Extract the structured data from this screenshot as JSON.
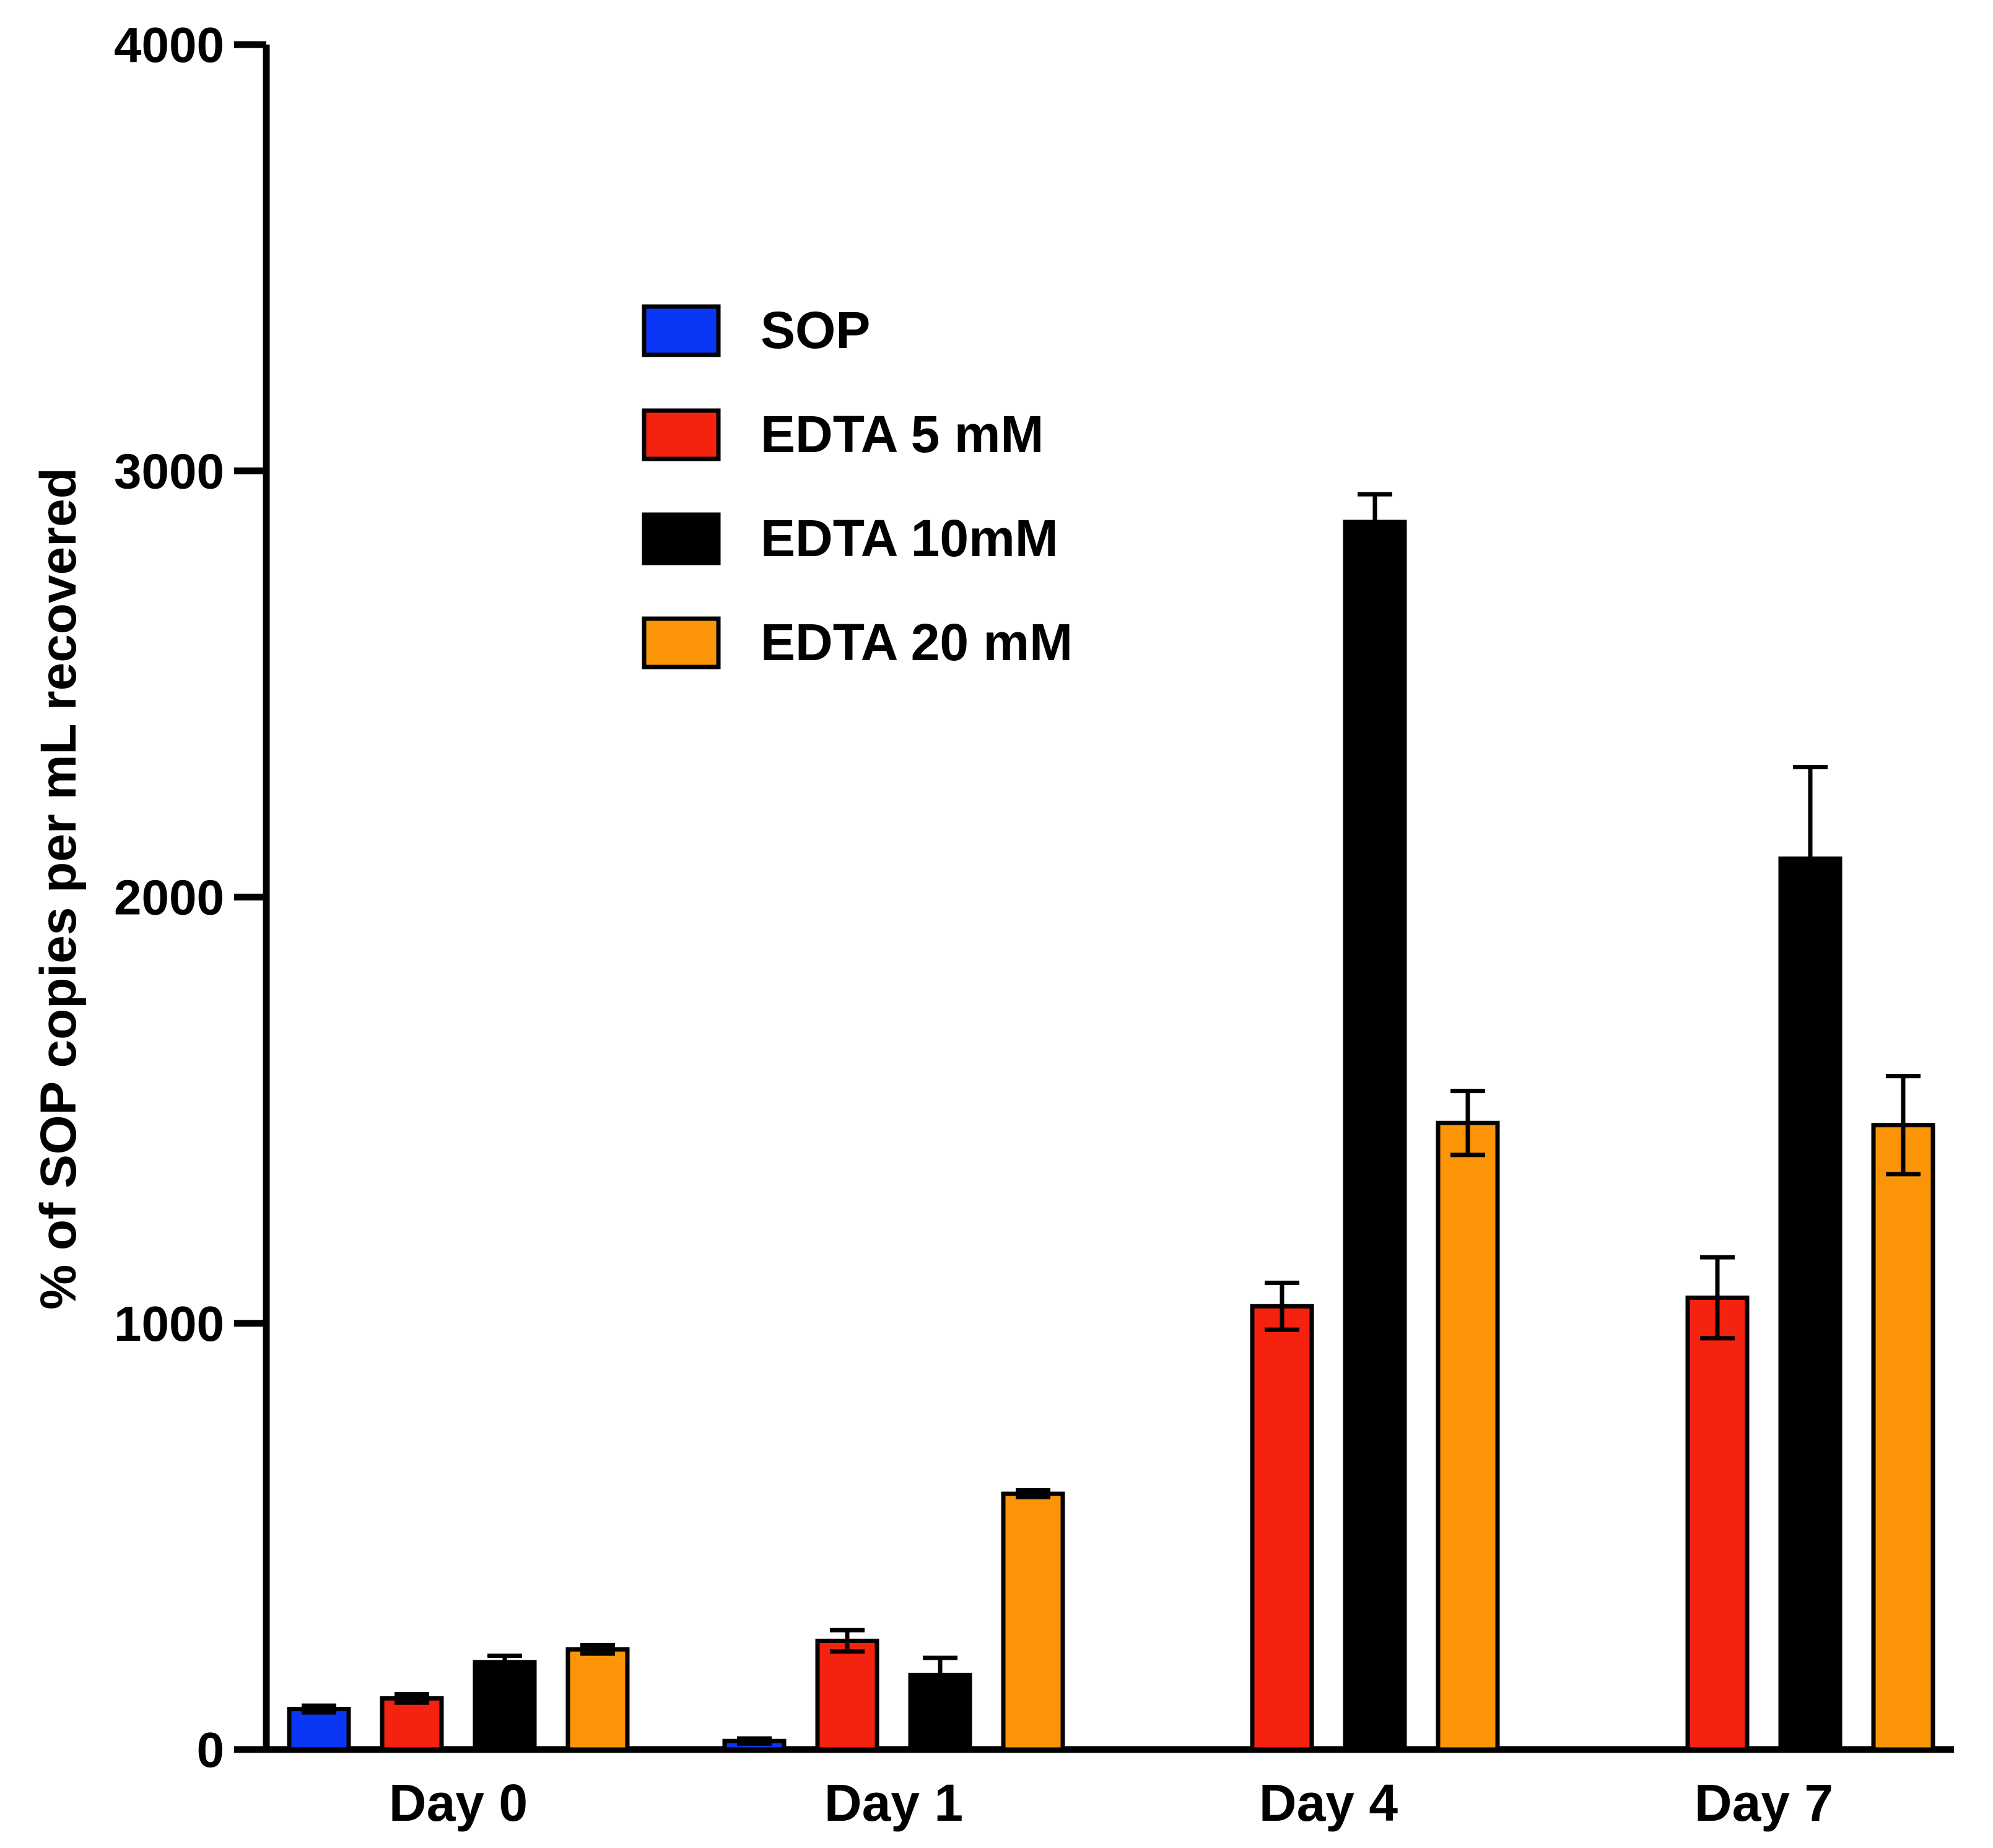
{
  "chart_data": {
    "type": "bar",
    "title": "",
    "xlabel": "",
    "ylabel": "% of SOP copies per mL recovered",
    "ylim": [
      0,
      4000
    ],
    "yticks": [
      0,
      1000,
      2000,
      3000,
      4000
    ],
    "ytick_labels": [
      "0",
      "1000",
      "2000",
      "3000",
      "4000"
    ],
    "categories": [
      "Day 0",
      "Day 1",
      "Day 4",
      "Day 7"
    ],
    "grid": false,
    "legend_position": "upper-left-center",
    "series": [
      {
        "name": "SOP",
        "color": "#0a36f5",
        "values": [
          95,
          20,
          0,
          0
        ],
        "errors": [
          8,
          6,
          0,
          0
        ]
      },
      {
        "name": "EDTA 5 mM",
        "color": "#f5220f",
        "values": [
          120,
          255,
          1040,
          1060
        ],
        "errors": [
          10,
          25,
          55,
          95
        ]
      },
      {
        "name": "EDTA 10mM",
        "color": "#000000",
        "values": [
          205,
          175,
          2880,
          2090
        ],
        "errors": [
          15,
          40,
          65,
          215
        ]
      },
      {
        "name": "EDTA 20 mM",
        "color": "#fb9507",
        "values": [
          235,
          600,
          1470,
          1465
        ],
        "errors": [
          10,
          8,
          75,
          115
        ]
      }
    ]
  }
}
